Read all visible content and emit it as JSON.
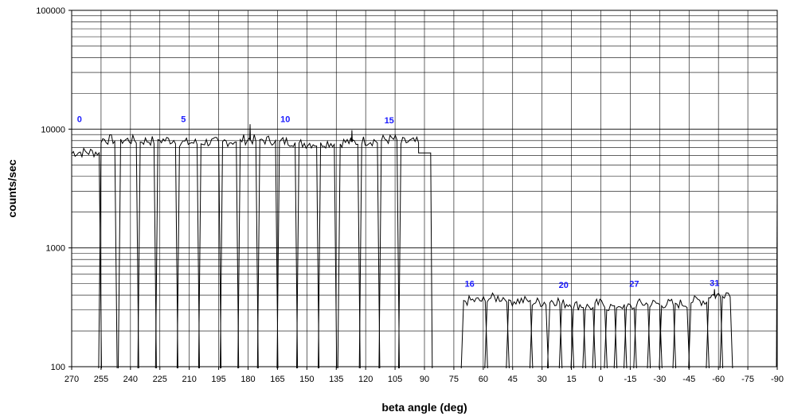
{
  "chart_data": {
    "type": "line",
    "title": "",
    "xlabel": "beta angle (deg)",
    "ylabel": "counts/sec",
    "x_reversed": true,
    "xlim": [
      270,
      -90
    ],
    "ylim": [
      100,
      100000
    ],
    "y_scale": "log",
    "grid": true,
    "legend": "none",
    "x_ticks": [
      270,
      255,
      240,
      225,
      210,
      195,
      180,
      165,
      150,
      135,
      120,
      105,
      90,
      75,
      60,
      45,
      30,
      15,
      0,
      -15,
      -30,
      -45,
      -60,
      -75,
      -90
    ],
    "y_ticks": [
      100,
      1000,
      10000,
      100000
    ],
    "y_tick_labels": [
      "100",
      "1000",
      "10000",
      "100000"
    ],
    "detector_labels": [
      {
        "text": "0",
        "x": 266,
        "y": 11500
      },
      {
        "text": "5",
        "x": 213,
        "y": 11500
      },
      {
        "text": "10",
        "x": 161,
        "y": 11500
      },
      {
        "text": "15",
        "x": 108,
        "y": 11200
      },
      {
        "text": "16",
        "x": 67,
        "y": 470
      },
      {
        "text": "20",
        "x": 19,
        "y": 460
      },
      {
        "text": "27",
        "x": -17,
        "y": 470
      },
      {
        "text": "31",
        "x": -58,
        "y": 480
      }
    ],
    "series": [
      {
        "color": "#000000",
        "groups": [
          {
            "start": 270,
            "end": 256,
            "level": 6400,
            "leftRise": true
          },
          {
            "start": 255,
            "end": 248,
            "level": 8200
          },
          {
            "start": 245,
            "end": 237,
            "level": 8100
          },
          {
            "start": 235,
            "end": 228,
            "level": 8000
          },
          {
            "start": 226,
            "end": 217,
            "level": 8100
          },
          {
            "start": 215,
            "end": 206,
            "level": 7700
          },
          {
            "start": 204,
            "end": 195,
            "level": 7800
          },
          {
            "start": 193,
            "end": 186,
            "level": 7900
          },
          {
            "start": 184,
            "end": 176,
            "level": 8200,
            "spike": [
              179,
              11000
            ]
          },
          {
            "start": 174,
            "end": 166,
            "level": 8100
          },
          {
            "start": 164,
            "end": 156,
            "level": 7900
          },
          {
            "start": 154,
            "end": 145,
            "level": 7600
          },
          {
            "start": 143,
            "end": 136,
            "level": 7700
          },
          {
            "start": 133,
            "end": 124,
            "level": 7800,
            "spike": [
              127,
              9800
            ]
          },
          {
            "start": 122,
            "end": 114,
            "level": 8000
          },
          {
            "start": 112,
            "end": 104,
            "level": 8200
          },
          {
            "start": 102,
            "end": 93,
            "level": 7800,
            "tail": [
              93,
              86,
              6300
            ]
          },
          {
            "start": 70,
            "end": 59,
            "level": 360
          },
          {
            "start": 58,
            "end": 48,
            "level": 380
          },
          {
            "start": 47,
            "end": 36,
            "level": 360
          },
          {
            "start": 35,
            "end": 28,
            "level": 350
          },
          {
            "start": 26,
            "end": 21,
            "level": 360
          },
          {
            "start": 20,
            "end": 15,
            "level": 340
          },
          {
            "start": 14,
            "end": 9,
            "level": 330
          },
          {
            "start": 8,
            "end": 4,
            "level": 320
          },
          {
            "start": 3,
            "end": -2,
            "level": 340
          },
          {
            "start": -3,
            "end": -7,
            "level": 320
          },
          {
            "start": -8,
            "end": -12,
            "level": 330
          },
          {
            "start": -13,
            "end": -17,
            "level": 320
          },
          {
            "start": -18,
            "end": -24,
            "level": 340
          },
          {
            "start": -25,
            "end": -30,
            "level": 340
          },
          {
            "start": -31,
            "end": -37,
            "level": 340
          },
          {
            "start": -38,
            "end": -44,
            "level": 340
          },
          {
            "start": -46,
            "end": -54,
            "level": 360
          },
          {
            "start": -55,
            "end": -61,
            "level": 400,
            "spike": [
              -58,
              450
            ]
          },
          {
            "start": -62,
            "end": -66,
            "level": 420
          }
        ],
        "edge_spike": {
          "x": -90,
          "y": 3000
        }
      }
    ]
  }
}
